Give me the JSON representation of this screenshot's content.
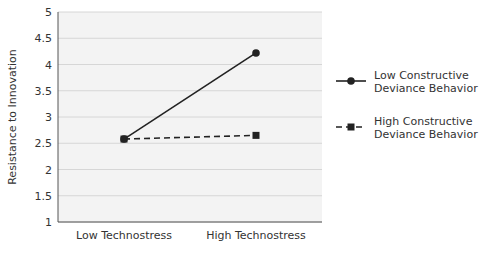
{
  "chart_data": {
    "type": "line",
    "categories": [
      "Low Technostress",
      "High Technostress"
    ],
    "ylabel": "Resistance to Innovation",
    "ylim": [
      1,
      5
    ],
    "yticks": [
      1,
      1.5,
      2,
      2.5,
      3,
      3.5,
      4,
      4.5,
      5
    ],
    "grid": true,
    "legend": "right",
    "series": [
      {
        "name": "Low Constructive\nDeviance Behavior",
        "color": "#222222",
        "values": [
          2.58,
          4.22
        ],
        "marker": "circle",
        "line_style": "solid"
      },
      {
        "name": "High Constructive\nDeviance Behavior",
        "color": "#222222",
        "values": [
          2.58,
          2.65
        ],
        "marker": "square",
        "line_style": "dashed"
      }
    ]
  }
}
